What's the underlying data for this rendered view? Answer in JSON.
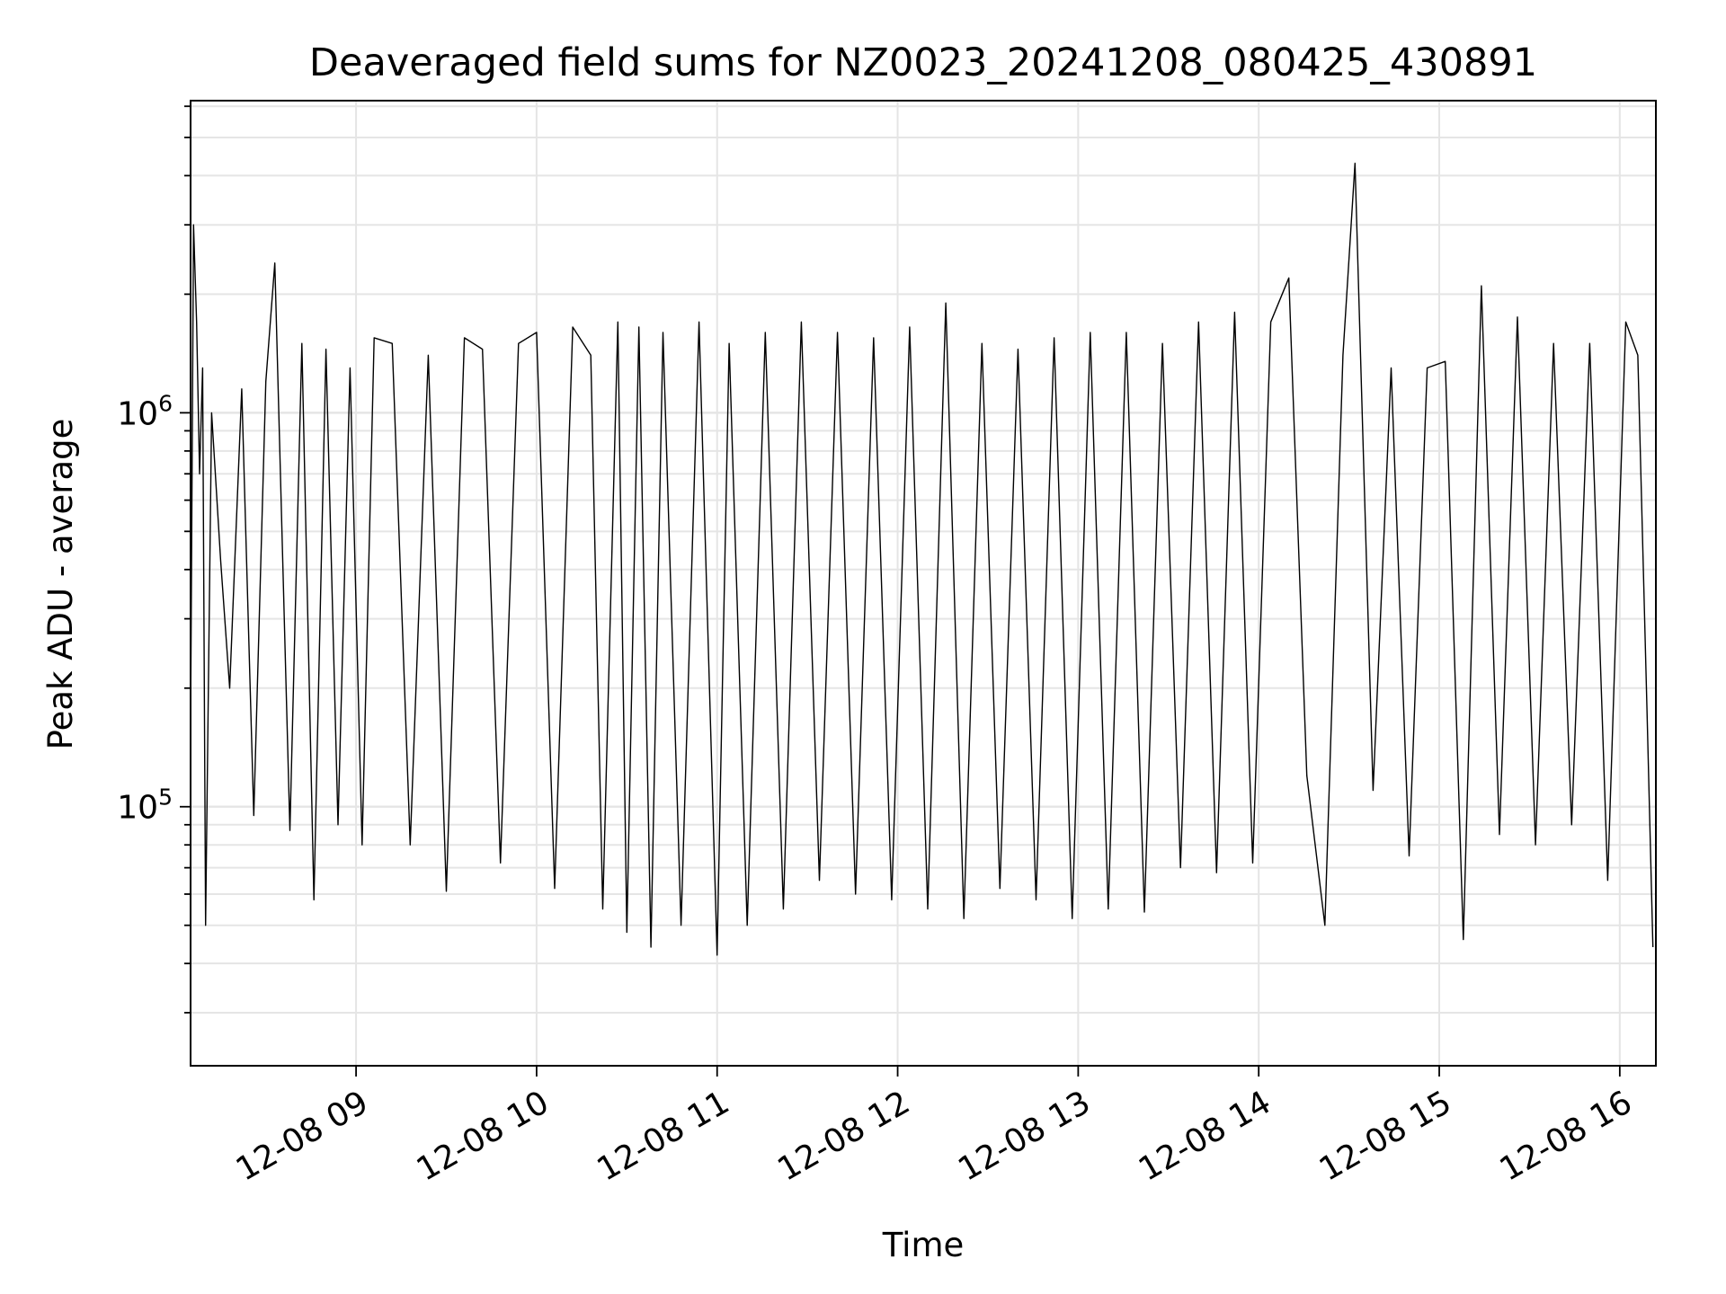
{
  "chart_data": {
    "type": "line",
    "title": "Deaveraged field sums for NZ0023_20241208_080425_430891",
    "xlabel": "Time",
    "ylabel": "Peak ADU - average",
    "yscale": "log",
    "ylim": [
      22000,
      6200000
    ],
    "xlim": [
      "12-08 08:05",
      "12-08 16:12"
    ],
    "grid": true,
    "legend": "none",
    "x_ticks": [
      "12-08 09",
      "12-08 10",
      "12-08 11",
      "12-08 12",
      "12-08 13",
      "12-08 14",
      "12-08 15",
      "12-08 16"
    ],
    "y_ticks": [
      {
        "base": "10",
        "exp": "5",
        "value": 100000
      },
      {
        "base": "10",
        "exp": "6",
        "value": 1000000
      }
    ],
    "line_color": "#000000",
    "grid_color": "#e5e5e5",
    "series": [
      {
        "x": [
          "12-08 08:05",
          "12-08 08:06",
          "12-08 08:07",
          "12-08 08:08",
          "12-08 08:09",
          "12-08 08:10",
          "12-08 08:12",
          "12-08 08:15",
          "12-08 08:18",
          "12-08 08:22",
          "12-08 08:26",
          "12-08 08:30",
          "12-08 08:33",
          "12-08 08:38",
          "12-08 08:42",
          "12-08 08:46",
          "12-08 08:50",
          "12-08 08:54",
          "12-08 08:58",
          "12-08 09:02",
          "12-08 09:06",
          "12-08 09:12",
          "12-08 09:18",
          "12-08 09:24",
          "12-08 09:30",
          "12-08 09:36",
          "12-08 09:42",
          "12-08 09:48",
          "12-08 09:54",
          "12-08 10:00",
          "12-08 10:06",
          "12-08 10:12",
          "12-08 10:18",
          "12-08 10:22",
          "12-08 10:27",
          "12-08 10:30",
          "12-08 10:34",
          "12-08 10:38",
          "12-08 10:42",
          "12-08 10:48",
          "12-08 10:54",
          "12-08 11:00",
          "12-08 11:04",
          "12-08 11:10",
          "12-08 11:16",
          "12-08 11:22",
          "12-08 11:28",
          "12-08 11:34",
          "12-08 11:40",
          "12-08 11:46",
          "12-08 11:52",
          "12-08 11:58",
          "12-08 12:04",
          "12-08 12:10",
          "12-08 12:16",
          "12-08 12:22",
          "12-08 12:28",
          "12-08 12:34",
          "12-08 12:40",
          "12-08 12:46",
          "12-08 12:52",
          "12-08 12:58",
          "12-08 13:04",
          "12-08 13:10",
          "12-08 13:16",
          "12-08 13:22",
          "12-08 13:28",
          "12-08 13:34",
          "12-08 13:40",
          "12-08 13:46",
          "12-08 13:52",
          "12-08 13:58",
          "12-08 14:04",
          "12-08 14:10",
          "12-08 14:16",
          "12-08 14:22",
          "12-08 14:28",
          "12-08 14:32",
          "12-08 14:38",
          "12-08 14:44",
          "12-08 14:50",
          "12-08 14:56",
          "12-08 15:02",
          "12-08 15:08",
          "12-08 15:14",
          "12-08 15:20",
          "12-08 15:26",
          "12-08 15:32",
          "12-08 15:38",
          "12-08 15:44",
          "12-08 15:50",
          "12-08 15:56",
          "12-08 16:02",
          "12-08 16:06",
          "12-08 16:09",
          "12-08 16:11"
        ],
        "y": [
          160000,
          3000000,
          1700000,
          700000,
          1300000,
          50000,
          1000000,
          420000,
          200000,
          1150000,
          95000,
          1200000,
          2400000,
          87000,
          1500000,
          58000,
          1450000,
          90000,
          1300000,
          80000,
          1550000,
          1500000,
          80000,
          1400000,
          61000,
          1550000,
          1450000,
          72000,
          1500000,
          1600000,
          62000,
          1650000,
          1400000,
          55000,
          1700000,
          48000,
          1650000,
          44000,
          1600000,
          50000,
          1700000,
          42000,
          1500000,
          50000,
          1600000,
          55000,
          1700000,
          65000,
          1600000,
          60000,
          1550000,
          58000,
          1650000,
          55000,
          1900000,
          52000,
          1500000,
          62000,
          1450000,
          58000,
          1550000,
          52000,
          1600000,
          55000,
          1600000,
          54000,
          1500000,
          70000,
          1700000,
          68000,
          1800000,
          72000,
          1700000,
          2200000,
          120000,
          50000,
          1400000,
          4300000,
          110000,
          1300000,
          75000,
          1300000,
          1350000,
          46000,
          2100000,
          85000,
          1750000,
          80000,
          1500000,
          90000,
          1500000,
          65000,
          1700000,
          1400000,
          180000,
          44000
        ]
      }
    ]
  }
}
